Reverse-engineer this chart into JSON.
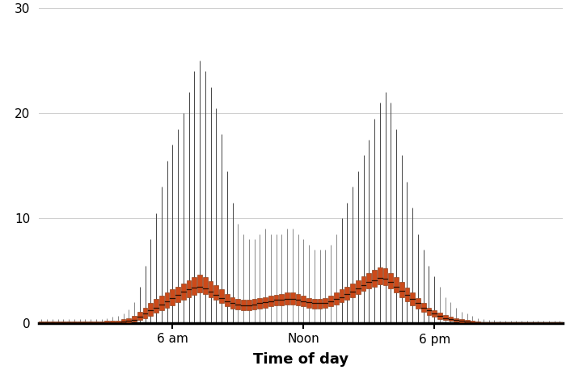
{
  "xlabel": "Time of day",
  "ylim": [
    0,
    30
  ],
  "yticks": [
    0,
    10,
    20,
    30
  ],
  "xtick_labels": [
    "6 am",
    "Noon",
    "6 pm"
  ],
  "xtick_positions": [
    24,
    48,
    72
  ],
  "box_color": "#CC4A1A",
  "median_color": "#2a0e00",
  "whisker_color": "#888888",
  "whisker_color_dark": "#444444",
  "grid_color": "#d0d0d0",
  "xlabel_fontsize": 13,
  "n_intervals": 96,
  "median": [
    0.05,
    0.05,
    0.05,
    0.05,
    0.05,
    0.05,
    0.05,
    0.05,
    0.05,
    0.05,
    0.05,
    0.05,
    0.1,
    0.1,
    0.1,
    0.15,
    0.2,
    0.3,
    0.6,
    0.9,
    1.2,
    1.5,
    1.8,
    2.1,
    2.4,
    2.7,
    3.0,
    3.2,
    3.4,
    3.5,
    3.3,
    3.0,
    2.7,
    2.4,
    2.1,
    1.9,
    1.8,
    1.7,
    1.7,
    1.8,
    1.9,
    2.0,
    2.1,
    2.2,
    2.2,
    2.3,
    2.3,
    2.2,
    2.1,
    2.0,
    1.9,
    1.9,
    1.9,
    2.1,
    2.3,
    2.5,
    2.8,
    3.0,
    3.3,
    3.6,
    3.9,
    4.1,
    4.3,
    4.2,
    3.9,
    3.5,
    3.1,
    2.7,
    2.3,
    1.9,
    1.5,
    1.2,
    0.9,
    0.7,
    0.5,
    0.4,
    0.3,
    0.2,
    0.15,
    0.1,
    0.1,
    0.05,
    0.05,
    0.05,
    0.05,
    0.05,
    0.05,
    0.05,
    0.05,
    0.05,
    0.05,
    0.05,
    0.05,
    0.05,
    0.05,
    0.05
  ],
  "q1": [
    0.0,
    0.0,
    0.0,
    0.0,
    0.0,
    0.0,
    0.0,
    0.0,
    0.0,
    0.0,
    0.0,
    0.0,
    0.0,
    0.0,
    0.05,
    0.05,
    0.1,
    0.15,
    0.3,
    0.5,
    0.7,
    1.0,
    1.2,
    1.5,
    1.7,
    2.0,
    2.2,
    2.5,
    2.7,
    2.9,
    2.8,
    2.5,
    2.2,
    1.9,
    1.6,
    1.4,
    1.3,
    1.2,
    1.2,
    1.3,
    1.4,
    1.5,
    1.6,
    1.7,
    1.7,
    1.8,
    1.8,
    1.7,
    1.6,
    1.5,
    1.4,
    1.4,
    1.5,
    1.6,
    1.8,
    2.0,
    2.2,
    2.5,
    2.8,
    3.1,
    3.3,
    3.5,
    3.7,
    3.6,
    3.3,
    2.9,
    2.5,
    2.1,
    1.7,
    1.4,
    1.1,
    0.8,
    0.6,
    0.4,
    0.3,
    0.2,
    0.15,
    0.1,
    0.05,
    0.05,
    0.05,
    0.0,
    0.0,
    0.0,
    0.0,
    0.0,
    0.0,
    0.0,
    0.0,
    0.0,
    0.0,
    0.0,
    0.0,
    0.0,
    0.0,
    0.0
  ],
  "q3": [
    0.15,
    0.15,
    0.15,
    0.15,
    0.15,
    0.15,
    0.15,
    0.15,
    0.15,
    0.15,
    0.15,
    0.15,
    0.2,
    0.2,
    0.25,
    0.35,
    0.5,
    0.7,
    1.1,
    1.5,
    1.9,
    2.3,
    2.6,
    2.9,
    3.2,
    3.5,
    3.8,
    4.1,
    4.4,
    4.6,
    4.4,
    4.0,
    3.6,
    3.2,
    2.8,
    2.5,
    2.3,
    2.2,
    2.2,
    2.3,
    2.4,
    2.5,
    2.6,
    2.7,
    2.8,
    2.9,
    2.9,
    2.8,
    2.6,
    2.4,
    2.3,
    2.3,
    2.4,
    2.6,
    2.9,
    3.2,
    3.5,
    3.8,
    4.1,
    4.5,
    4.8,
    5.1,
    5.3,
    5.2,
    4.8,
    4.4,
    3.9,
    3.4,
    2.9,
    2.4,
    1.9,
    1.5,
    1.2,
    1.0,
    0.8,
    0.6,
    0.5,
    0.4,
    0.3,
    0.2,
    0.15,
    0.1,
    0.1,
    0.1,
    0.1,
    0.1,
    0.1,
    0.1,
    0.1,
    0.1,
    0.1,
    0.1,
    0.1,
    0.1,
    0.1,
    0.1
  ],
  "whisker_low": [
    0.0,
    0.0,
    0.0,
    0.0,
    0.0,
    0.0,
    0.0,
    0.0,
    0.0,
    0.0,
    0.0,
    0.0,
    0.0,
    0.0,
    0.0,
    0.0,
    0.0,
    0.0,
    0.0,
    0.0,
    0.0,
    0.0,
    0.0,
    0.0,
    0.0,
    0.0,
    0.0,
    0.0,
    0.0,
    0.0,
    0.0,
    0.0,
    0.0,
    0.0,
    0.0,
    0.0,
    0.0,
    0.0,
    0.0,
    0.0,
    0.0,
    0.0,
    0.0,
    0.0,
    0.0,
    0.0,
    0.0,
    0.0,
    0.0,
    0.0,
    0.0,
    0.0,
    0.0,
    0.0,
    0.0,
    0.0,
    0.0,
    0.0,
    0.0,
    0.0,
    0.0,
    0.0,
    0.0,
    0.0,
    0.0,
    0.0,
    0.0,
    0.0,
    0.0,
    0.0,
    0.0,
    0.0,
    0.0,
    0.0,
    0.0,
    0.0,
    0.0,
    0.0,
    0.0,
    0.0,
    0.0,
    0.0,
    0.0,
    0.0,
    0.0,
    0.0,
    0.0,
    0.0,
    0.0,
    0.0,
    0.0,
    0.0,
    0.0,
    0.0,
    0.0,
    0.0
  ],
  "whisker_high": [
    0.4,
    0.4,
    0.4,
    0.4,
    0.4,
    0.4,
    0.4,
    0.4,
    0.4,
    0.4,
    0.4,
    0.4,
    0.5,
    0.6,
    0.7,
    0.9,
    1.3,
    2.0,
    3.5,
    5.5,
    8.0,
    10.5,
    13.0,
    15.5,
    17.0,
    18.5,
    20.0,
    22.0,
    24.0,
    25.0,
    24.0,
    22.5,
    20.5,
    18.0,
    14.5,
    11.5,
    9.5,
    8.5,
    8.0,
    8.0,
    8.5,
    9.0,
    8.5,
    8.5,
    8.5,
    9.0,
    9.0,
    8.5,
    8.0,
    7.5,
    7.0,
    7.0,
    7.0,
    7.5,
    8.5,
    10.0,
    11.5,
    13.0,
    14.5,
    16.0,
    17.5,
    19.5,
    21.0,
    22.0,
    21.0,
    18.5,
    16.0,
    13.5,
    11.0,
    8.5,
    7.0,
    5.5,
    4.5,
    3.5,
    2.5,
    2.0,
    1.5,
    1.1,
    0.9,
    0.7,
    0.5,
    0.4,
    0.3,
    0.3,
    0.2,
    0.2,
    0.2,
    0.2,
    0.2,
    0.2,
    0.2,
    0.2,
    0.2,
    0.2,
    0.2,
    0.2
  ]
}
